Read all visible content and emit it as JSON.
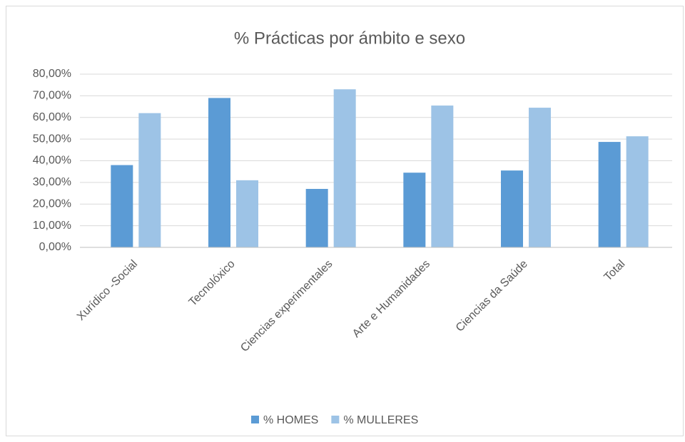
{
  "chart_data": {
    "type": "bar",
    "title": "% Prácticas por ámbito e sexo",
    "categories": [
      "Xurídico -Social",
      "Tecnolóxico",
      "Ciencias experimentales",
      "Arte e Humanidades",
      "Ciencias da Saúde",
      "Total"
    ],
    "series": [
      {
        "name": "% HOMES",
        "color": "#5b9bd5",
        "values": [
          38,
          69,
          27,
          34.5,
          35.5,
          48.7
        ]
      },
      {
        "name": "% MULLERES",
        "color": "#9dc3e6",
        "values": [
          62,
          31,
          73,
          65.5,
          64.5,
          51.3
        ]
      }
    ],
    "ylim": [
      0,
      80
    ],
    "yticks": [
      {
        "value": 0,
        "label": "0,00%"
      },
      {
        "value": 10,
        "label": "10,00%"
      },
      {
        "value": 20,
        "label": "20,00%"
      },
      {
        "value": 30,
        "label": "30,00%"
      },
      {
        "value": 40,
        "label": "40,00%"
      },
      {
        "value": 50,
        "label": "50,00%"
      },
      {
        "value": 60,
        "label": "60,00%"
      },
      {
        "value": 70,
        "label": "70,00%"
      },
      {
        "value": 80,
        "label": "80,00%"
      }
    ],
    "grid": true,
    "legend": "bottom"
  }
}
